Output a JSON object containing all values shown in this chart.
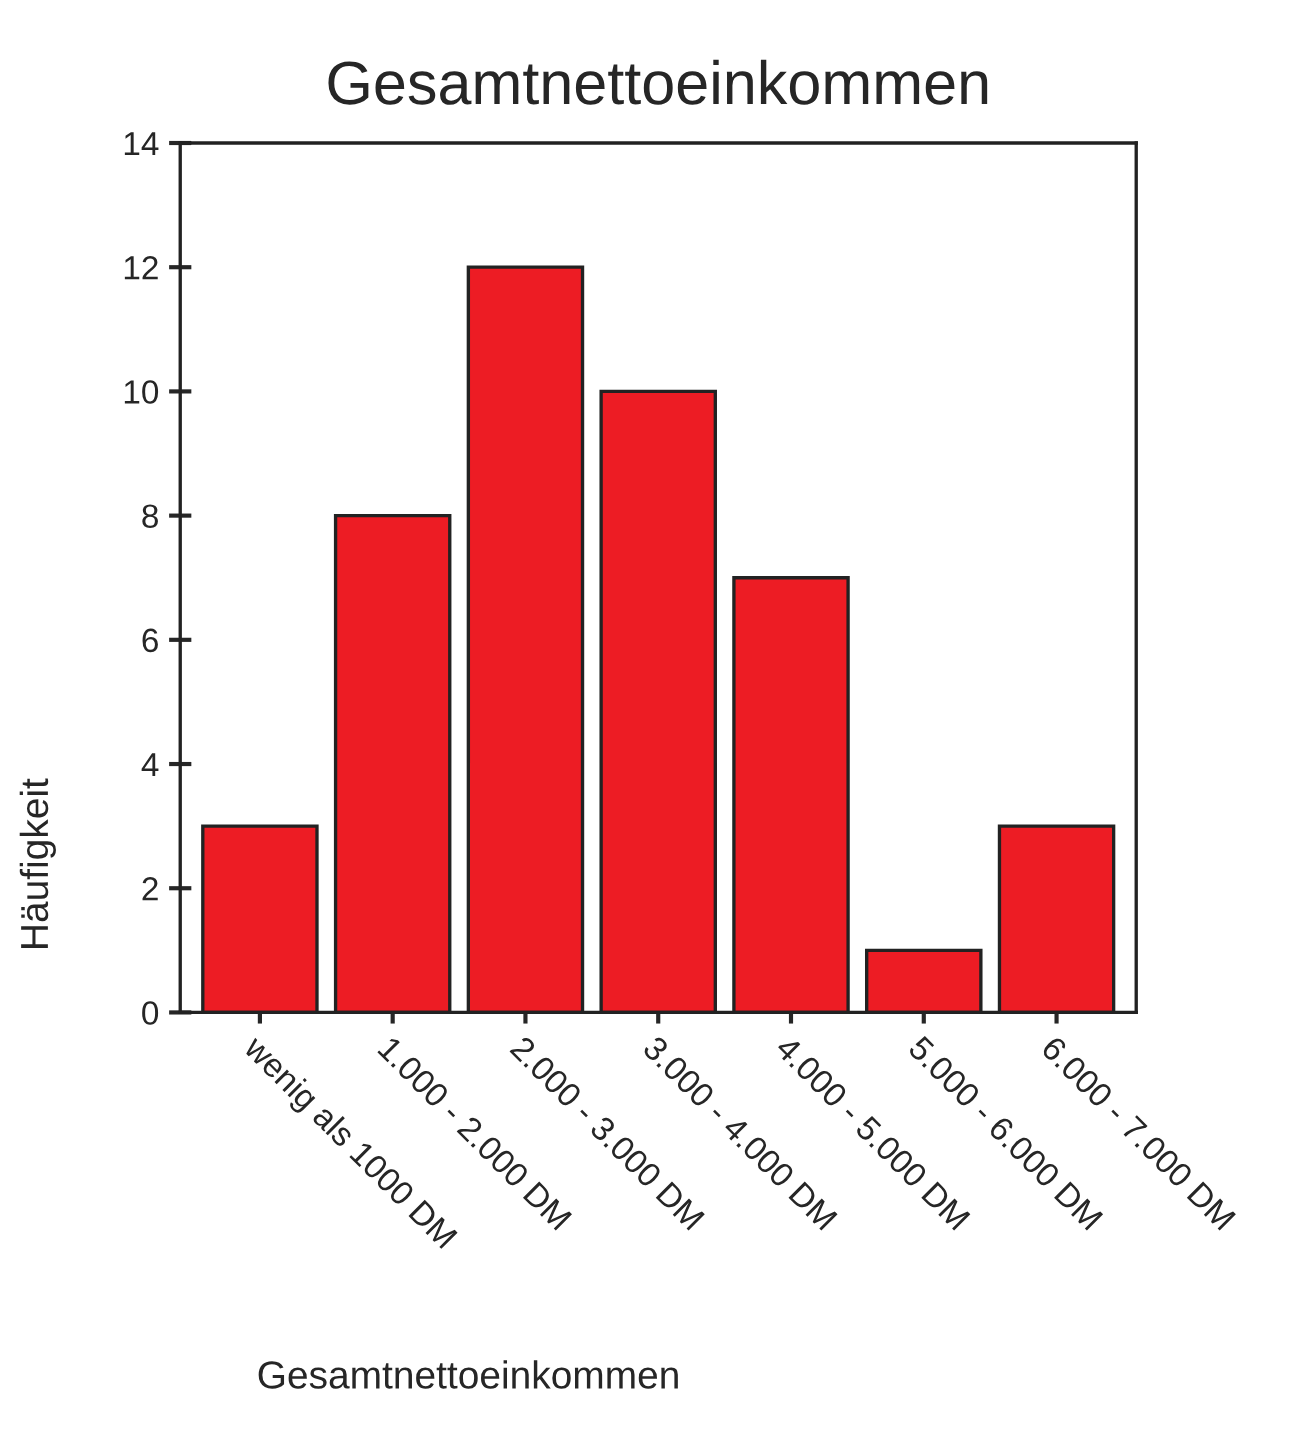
{
  "chart_data": {
    "type": "bar",
    "title": "Gesamtnettoeinkommen",
    "xlabel": "Gesamtnettoeinkommen",
    "ylabel": "Häufigkeit",
    "categories": [
      "wenig als 1000 DM",
      "1.000 - 2.000 DM",
      "2.000 - 3.000 DM",
      "3.000 - 4.000 DM",
      "4.000 - 5.000 DM",
      "5.000 - 6.000 DM",
      "6.000 - 7.000 DM"
    ],
    "values": [
      3,
      8,
      12,
      10,
      7,
      1,
      3
    ],
    "color": "#ed1c24",
    "ylim": [
      0,
      14
    ],
    "yticks": [
      0,
      2,
      4,
      6,
      8,
      10,
      12,
      14
    ],
    "grid": false,
    "legend": false
  }
}
